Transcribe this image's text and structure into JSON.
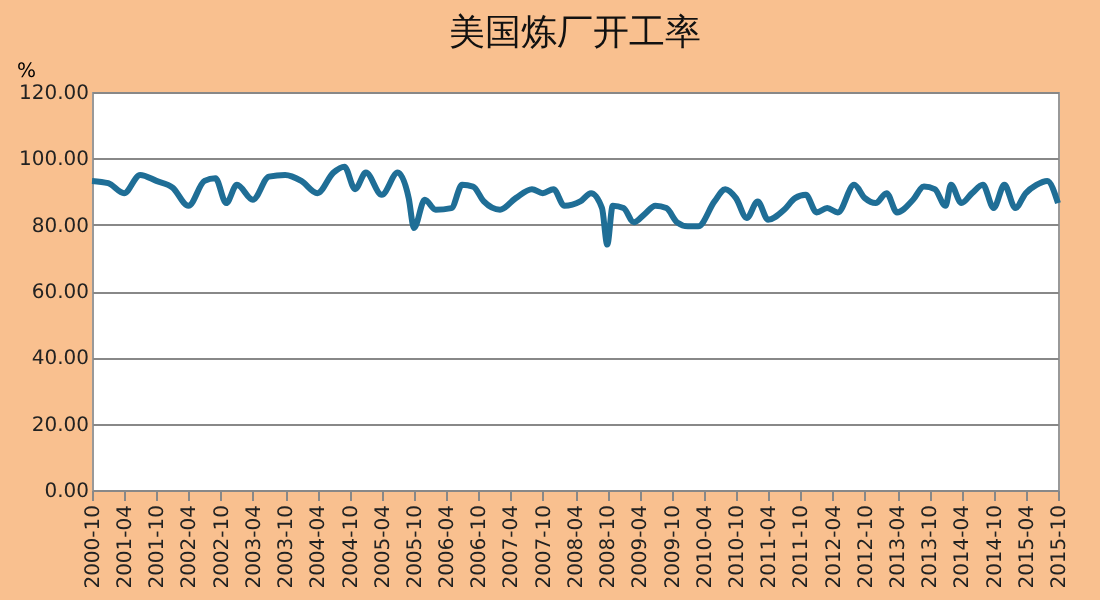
{
  "chart_data": {
    "type": "line",
    "title": "美国炼厂开工率",
    "ylabel": "%",
    "x": [
      "2000-10",
      "2001-01",
      "2001-04",
      "2001-07",
      "2001-10",
      "2002-01",
      "2002-04",
      "2002-07",
      "2002-09",
      "2002-11",
      "2003-01",
      "2003-04",
      "2003-07",
      "2003-10",
      "2004-01",
      "2004-04",
      "2004-07",
      "2004-09",
      "2004-11",
      "2005-01",
      "2005-04",
      "2005-07",
      "2005-09",
      "2005-10",
      "2005-12",
      "2006-02",
      "2006-05",
      "2006-07",
      "2006-09",
      "2006-11",
      "2007-02",
      "2007-05",
      "2007-08",
      "2007-10",
      "2007-12",
      "2008-02",
      "2008-05",
      "2008-07",
      "2008-09",
      "2008-10",
      "2008-11",
      "2009-01",
      "2009-03",
      "2009-05",
      "2009-07",
      "2009-09",
      "2009-11",
      "2010-01",
      "2010-03",
      "2010-06",
      "2010-08",
      "2010-10",
      "2010-12",
      "2011-02",
      "2011-04",
      "2011-07",
      "2011-09",
      "2011-11",
      "2012-01",
      "2012-03",
      "2012-05",
      "2012-08",
      "2012-10",
      "2012-12",
      "2013-02",
      "2013-04",
      "2013-07",
      "2013-09",
      "2013-11",
      "2014-01",
      "2014-02",
      "2014-04",
      "2014-06",
      "2014-08",
      "2014-10",
      "2014-12",
      "2015-02",
      "2015-04",
      "2015-06",
      "2015-08",
      "2015-10"
    ],
    "series": [
      {
        "color": "#1f6e96",
        "values": [
          93.2,
          92.5,
          89.5,
          95,
          93.2,
          91.2,
          85.7,
          93.2,
          94,
          86.5,
          92,
          87.5,
          94.5,
          95,
          93.2,
          89.5,
          95.7,
          97.5,
          90.7,
          95.7,
          89,
          95.7,
          88,
          79,
          87.5,
          84.5,
          85,
          92,
          91.5,
          87,
          84.5,
          88,
          90.7,
          89.5,
          90.7,
          85.7,
          87,
          89.5,
          85,
          74,
          85.7,
          85,
          80.7,
          83.2,
          85.7,
          85,
          80.7,
          79.5,
          79.5,
          87,
          90.7,
          88,
          82,
          87,
          81.5,
          84.5,
          88,
          89,
          83.7,
          85,
          83.7,
          92,
          88,
          86.5,
          89.5,
          83.7,
          87.5,
          91.5,
          90.7,
          85.7,
          92,
          86.5,
          89.5,
          92,
          85,
          92,
          85,
          89.5,
          92,
          93.2,
          86.5
        ]
      }
    ],
    "xlim": [
      "2000-10",
      "2015-10"
    ],
    "xticks": [
      "2000-10",
      "2001-04",
      "2001-10",
      "2002-04",
      "2002-10",
      "2003-04",
      "2003-10",
      "2004-04",
      "2004-10",
      "2005-04",
      "2005-10",
      "2006-04",
      "2006-10",
      "2007-04",
      "2007-10",
      "2008-04",
      "2008-10",
      "2009-04",
      "2009-10",
      "2010-04",
      "2010-10",
      "2011-04",
      "2011-10",
      "2012-04",
      "2012-10",
      "2013-04",
      "2013-10",
      "2014-04",
      "2014-10",
      "2015-04",
      "2015-10"
    ],
    "ylim": [
      0,
      120
    ],
    "yticks": [
      {
        "value": 0,
        "label": "0.00"
      },
      {
        "value": 20,
        "label": "20.00"
      },
      {
        "value": 40,
        "label": "40.00"
      },
      {
        "value": 60,
        "label": "60.00"
      },
      {
        "value": 80,
        "label": "80.00"
      },
      {
        "value": 100,
        "label": "100.00"
      },
      {
        "value": 120,
        "label": "120.00"
      }
    ],
    "grid": "y",
    "marker": "none",
    "line_style": "solid"
  }
}
